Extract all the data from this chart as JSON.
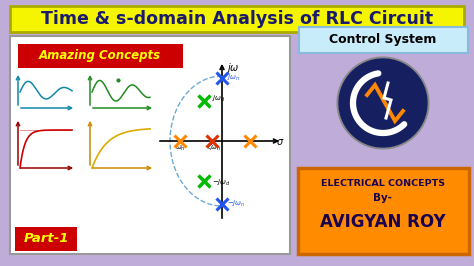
{
  "bg_color": "#c0acd8",
  "title": "Time & s-domain Analysis of RLC Circuit",
  "title_bg": "#f5f500",
  "title_color": "#1a1a6e",
  "left_panel_bg": "#ffffff",
  "amazing_bg": "#cc0000",
  "amazing_text": "Amazing Concepts",
  "amazing_color": "#ffff00",
  "part_bg": "#cc0000",
  "part_text": "Part-1",
  "part_color": "#ffff00",
  "control_bg": "#c8ecfa",
  "control_text": "Control System",
  "control_color": "#000000",
  "elec_bg": "#ff8c00",
  "elec_text1": "ELECTRICAL CONCEPTS",
  "elec_text2": "By-",
  "elec_text3": "AVIGYAN ROY",
  "elec_color": "#1a0050",
  "logo_bg": "#162060",
  "logo_white_arc_color": "#ffffff",
  "logo_orange_color": "#ff8800",
  "logo_lightning_color": "#ffffff"
}
